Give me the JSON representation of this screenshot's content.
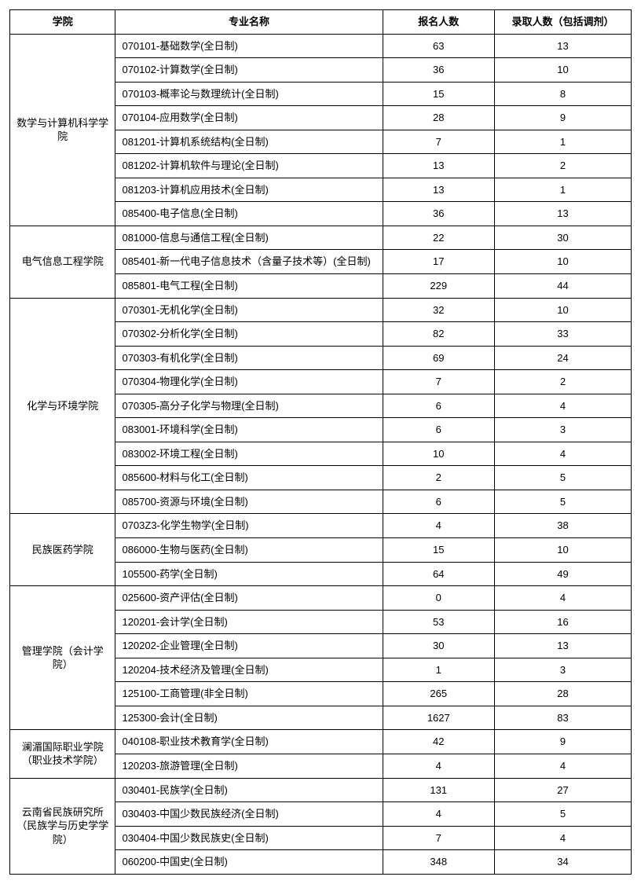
{
  "columns": {
    "school": "学院",
    "major": "专业名称",
    "applicants": "报名人数",
    "admits": "录取人数（包括调剂）"
  },
  "style": {
    "border_color": "#000000",
    "background_color": "#ffffff",
    "text_color": "#000000",
    "header_fontsize": 13,
    "cell_fontsize": 13,
    "col_widths_pct": [
      17,
      43,
      18,
      22
    ],
    "col_align": [
      "center",
      "left",
      "center",
      "center"
    ]
  },
  "schools": [
    {
      "name": "数学与计算机科学学院",
      "rows": [
        {
          "major": "070101-基础数学(全日制)",
          "applicants": 63,
          "admits": 13
        },
        {
          "major": "070102-计算数学(全日制)",
          "applicants": 36,
          "admits": 10
        },
        {
          "major": "070103-概率论与数理统计(全日制)",
          "applicants": 15,
          "admits": 8
        },
        {
          "major": "070104-应用数学(全日制)",
          "applicants": 28,
          "admits": 9
        },
        {
          "major": "081201-计算机系统结构(全日制)",
          "applicants": 7,
          "admits": 1
        },
        {
          "major": "081202-计算机软件与理论(全日制)",
          "applicants": 13,
          "admits": 2
        },
        {
          "major": "081203-计算机应用技术(全日制)",
          "applicants": 13,
          "admits": 1
        },
        {
          "major": "085400-电子信息(全日制)",
          "applicants": 36,
          "admits": 13
        }
      ]
    },
    {
      "name": "电气信息工程学院",
      "rows": [
        {
          "major": "081000-信息与通信工程(全日制)",
          "applicants": 22,
          "admits": 30
        },
        {
          "major": "085401-新一代电子信息技术（含量子技术等）(全日制)",
          "applicants": 17,
          "admits": 10
        },
        {
          "major": "085801-电气工程(全日制)",
          "applicants": 229,
          "admits": 44
        }
      ]
    },
    {
      "name": "化学与环境学院",
      "rows": [
        {
          "major": "070301-无机化学(全日制)",
          "applicants": 32,
          "admits": 10
        },
        {
          "major": "070302-分析化学(全日制)",
          "applicants": 82,
          "admits": 33
        },
        {
          "major": "070303-有机化学(全日制)",
          "applicants": 69,
          "admits": 24
        },
        {
          "major": "070304-物理化学(全日制)",
          "applicants": 7,
          "admits": 2
        },
        {
          "major": "070305-高分子化学与物理(全日制)",
          "applicants": 6,
          "admits": 4
        },
        {
          "major": "083001-环境科学(全日制)",
          "applicants": 6,
          "admits": 3
        },
        {
          "major": "083002-环境工程(全日制)",
          "applicants": 10,
          "admits": 4
        },
        {
          "major": "085600-材料与化工(全日制)",
          "applicants": 2,
          "admits": 5
        },
        {
          "major": "085700-资源与环境(全日制)",
          "applicants": 6,
          "admits": 5
        }
      ]
    },
    {
      "name": "民族医药学院",
      "rows": [
        {
          "major": "0703Z3-化学生物学(全日制)",
          "applicants": 4,
          "admits": 38
        },
        {
          "major": "086000-生物与医药(全日制)",
          "applicants": 15,
          "admits": 10
        },
        {
          "major": "105500-药学(全日制)",
          "applicants": 64,
          "admits": 49
        }
      ]
    },
    {
      "name": "管理学院（会计学院）",
      "rows": [
        {
          "major": "025600-资产评估(全日制)",
          "applicants": 0,
          "admits": 4
        },
        {
          "major": "120201-会计学(全日制)",
          "applicants": 53,
          "admits": 16
        },
        {
          "major": "120202-企业管理(全日制)",
          "applicants": 30,
          "admits": 13
        },
        {
          "major": "120204-技术经济及管理(全日制)",
          "applicants": 1,
          "admits": 3
        },
        {
          "major": "125100-工商管理(非全日制)",
          "applicants": 265,
          "admits": 28
        },
        {
          "major": "125300-会计(全日制)",
          "applicants": 1627,
          "admits": 83
        }
      ]
    },
    {
      "name": "澜湄国际职业学院（职业技术学院）",
      "rows": [
        {
          "major": "040108-职业技术教育学(全日制)",
          "applicants": 42,
          "admits": 9
        },
        {
          "major": "120203-旅游管理(全日制)",
          "applicants": 4,
          "admits": 4
        }
      ]
    },
    {
      "name": "云南省民族研究所（民族学与历史学学院）",
      "rows": [
        {
          "major": "030401-民族学(全日制)",
          "applicants": 131,
          "admits": 27
        },
        {
          "major": "030403-中国少数民族经济(全日制)",
          "applicants": 4,
          "admits": 5
        },
        {
          "major": "030404-中国少数民族史(全日制)",
          "applicants": 7,
          "admits": 4
        },
        {
          "major": "060200-中国史(全日制)",
          "applicants": 348,
          "admits": 34
        }
      ]
    }
  ]
}
